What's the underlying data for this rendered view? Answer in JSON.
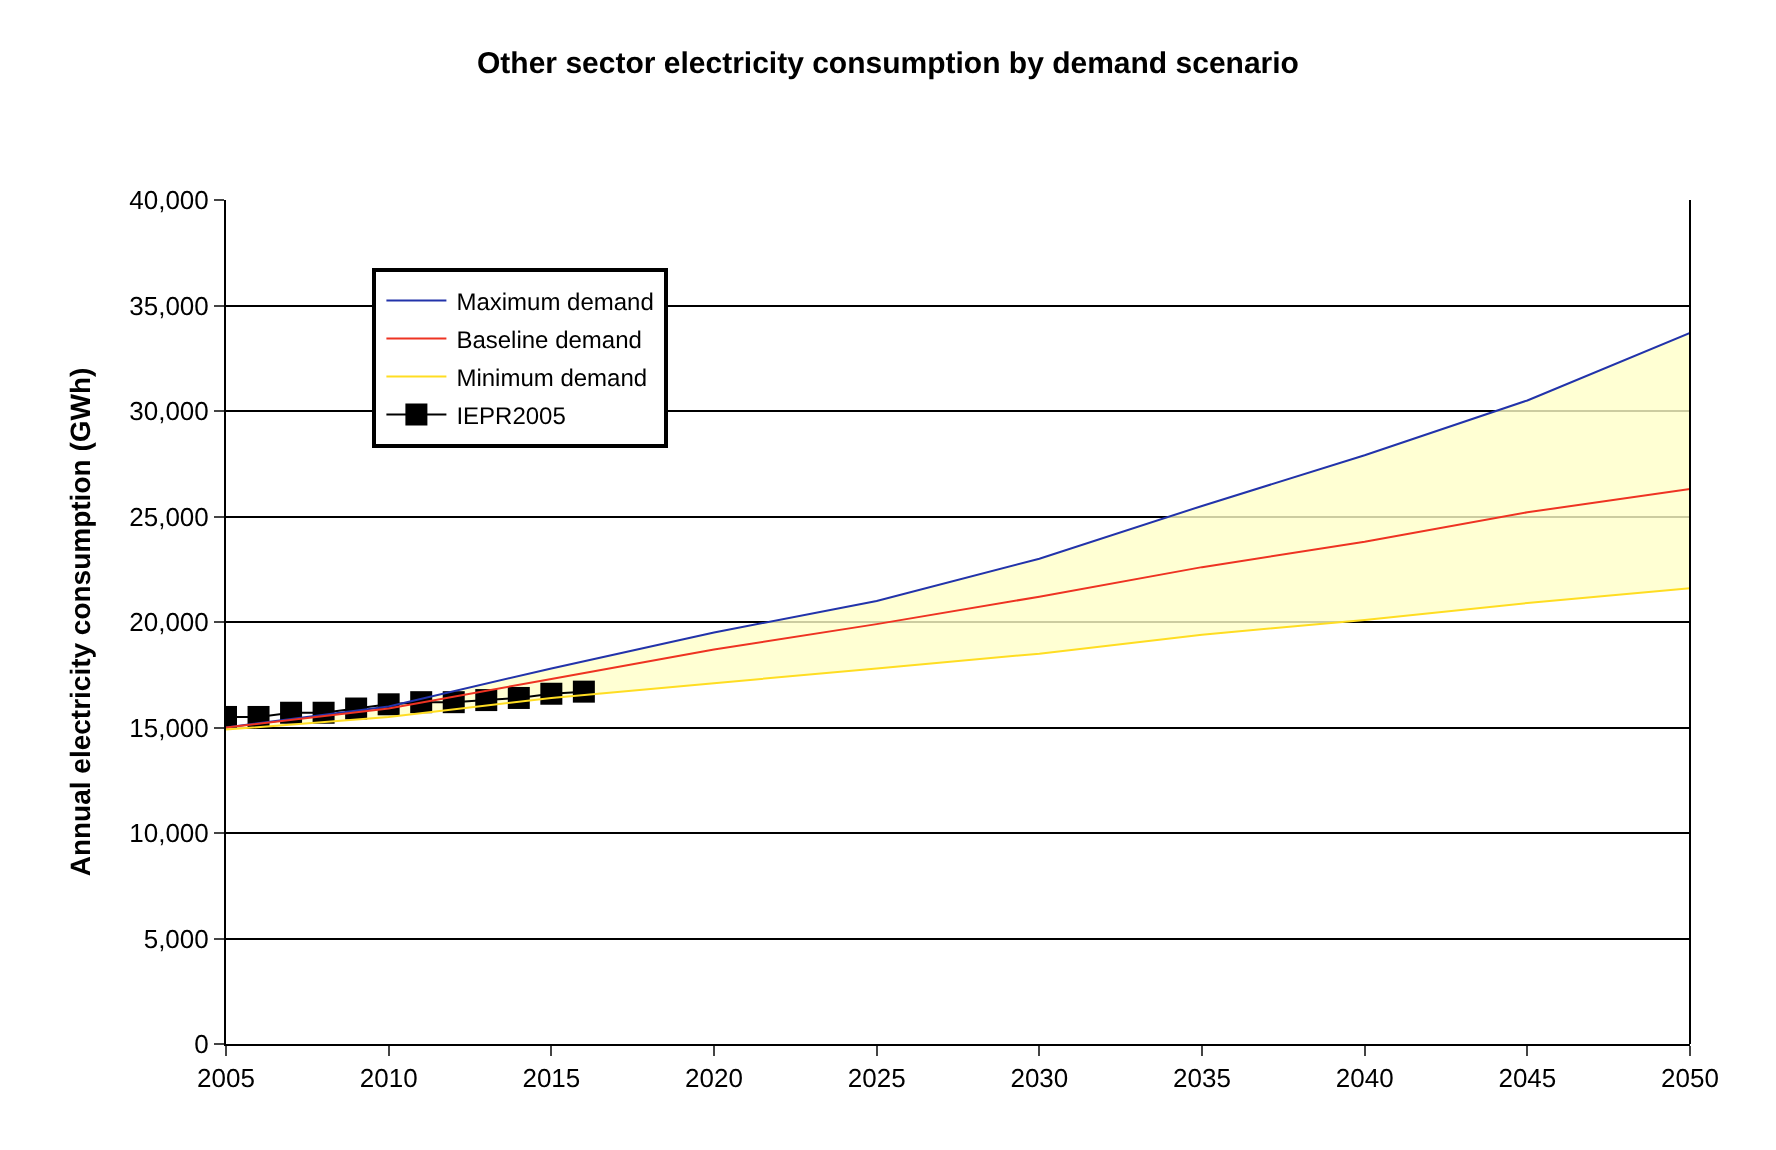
{
  "chart_data": {
    "type": "line",
    "title": "Other sector electricity consumption by demand scenario",
    "ylabel": "Annual electricity consumption (GWh)",
    "x": [
      2005,
      2010,
      2015,
      2020,
      2025,
      2030,
      2035,
      2040,
      2045,
      2050
    ],
    "series": [
      {
        "name": "Maximum demand",
        "color": "#2233aa",
        "values": [
          15000,
          16000,
          17800,
          19500,
          21000,
          23000,
          25500,
          27900,
          30500,
          33700
        ]
      },
      {
        "name": "Baseline demand",
        "color": "#ee3322",
        "values": [
          15000,
          15900,
          17300,
          18700,
          19900,
          21200,
          22600,
          23800,
          25200,
          26300
        ],
        "lower": [
          14900,
          15500,
          16400,
          17100,
          17800,
          18500,
          19400,
          20100,
          20900,
          21600
        ],
        "upper": [
          15000,
          16000,
          17800,
          19500,
          21000,
          23000,
          25500,
          27900,
          30500,
          33700
        ]
      },
      {
        "name": "Minimum demand",
        "color": "#ffdd22",
        "values": [
          14900,
          15500,
          16400,
          17100,
          17800,
          18500,
          19400,
          20100,
          20900,
          21600
        ]
      },
      {
        "name": "IEPR2005",
        "color": "#000000",
        "marker": "square",
        "x": [
          2005,
          2006,
          2007,
          2008,
          2009,
          2010,
          2011,
          2012,
          2013,
          2014,
          2015,
          2016
        ],
        "values": [
          15500,
          15500,
          15700,
          15700,
          15900,
          16100,
          16200,
          16200,
          16300,
          16400,
          16600,
          16700
        ]
      }
    ],
    "xlim": [
      2005,
      2050
    ],
    "xticks": [
      2005,
      2010,
      2015,
      2020,
      2025,
      2030,
      2035,
      2040,
      2045,
      2050
    ],
    "ylim": [
      0,
      40000
    ],
    "yticks": [
      {
        "value": 0,
        "label": "0"
      },
      {
        "value": 5000,
        "label": "5,000"
      },
      {
        "value": 10000,
        "label": "10,000"
      },
      {
        "value": 15000,
        "label": "15,000"
      },
      {
        "value": 20000,
        "label": "20,000"
      },
      {
        "value": 25000,
        "label": "25,000"
      },
      {
        "value": 30000,
        "label": "30,000"
      },
      {
        "value": 35000,
        "label": "35,000"
      },
      {
        "value": 40000,
        "label": "40,000"
      }
    ],
    "grid": "y",
    "legend": "top left",
    "marker": "none"
  }
}
